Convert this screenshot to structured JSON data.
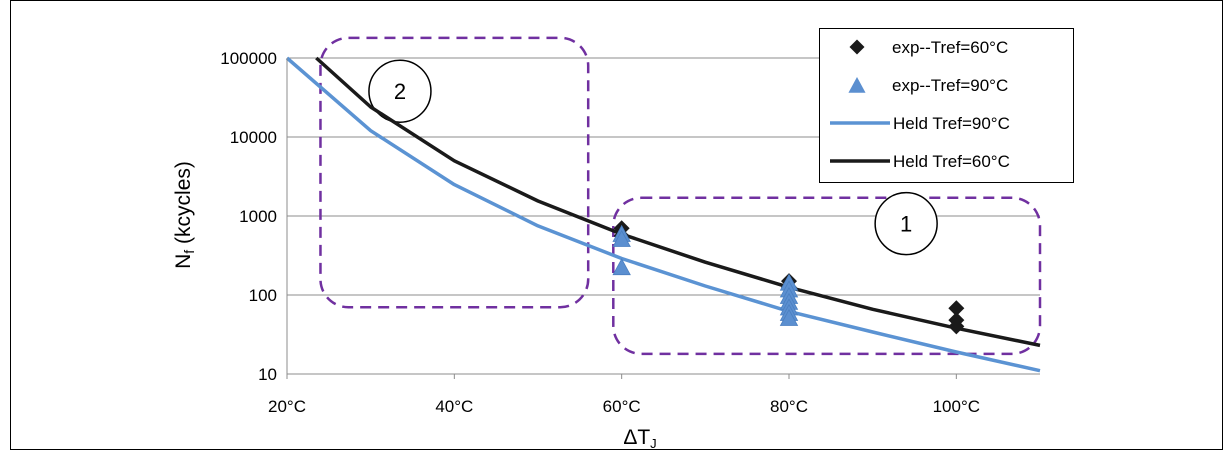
{
  "chart_data": {
    "type": "line",
    "xlabel": "ΔT",
    "xlabel_sub": "J",
    "ylabel": "N",
    "ylabel_sub": "f",
    "ylabel_tail": " (kcycles)",
    "xlim": [
      20,
      110
    ],
    "ylim": [
      10,
      100000
    ],
    "y_scale": "log",
    "grid": "horizontal",
    "x_ticks": [
      {
        "value": 20,
        "label": "20°C"
      },
      {
        "value": 40,
        "label": "40°C"
      },
      {
        "value": 60,
        "label": "60°C"
      },
      {
        "value": 80,
        "label": "80°C"
      },
      {
        "value": 100,
        "label": "100°C"
      }
    ],
    "y_ticks": [
      {
        "value": 10,
        "label": "10"
      },
      {
        "value": 100,
        "label": "100"
      },
      {
        "value": 1000,
        "label": "1000"
      },
      {
        "value": 10000,
        "label": "10000"
      },
      {
        "value": 100000,
        "label": "100000"
      }
    ],
    "legend_position": "top-right",
    "series": [
      {
        "name": "exp--Tref=60°C",
        "kind": "scatter",
        "marker": "diamond",
        "color": "#1a1a1a",
        "points": [
          [
            60,
            700
          ],
          [
            60,
            560
          ],
          [
            80,
            150
          ],
          [
            80,
            125
          ],
          [
            100,
            68
          ],
          [
            100,
            48
          ],
          [
            100,
            40
          ]
        ]
      },
      {
        "name": "exp--Tref=90°C",
        "kind": "scatter",
        "marker": "triangle",
        "color": "#5b8fd0",
        "points": [
          [
            60,
            580
          ],
          [
            60,
            500
          ],
          [
            60,
            220
          ],
          [
            80,
            140
          ],
          [
            80,
            115
          ],
          [
            80,
            95
          ],
          [
            80,
            80
          ],
          [
            80,
            68
          ],
          [
            80,
            58
          ],
          [
            80,
            50
          ]
        ]
      },
      {
        "name": "Held Tref=90°C",
        "kind": "line",
        "color": "#5b93d3",
        "points": [
          [
            20,
            100000
          ],
          [
            30,
            12000
          ],
          [
            40,
            2500
          ],
          [
            50,
            750
          ],
          [
            60,
            290
          ],
          [
            70,
            130
          ],
          [
            80,
            62
          ],
          [
            90,
            34
          ],
          [
            100,
            19
          ],
          [
            110,
            11
          ]
        ]
      },
      {
        "name": "Held Tref=60°C",
        "kind": "line",
        "color": "#1a1a1a",
        "points": [
          [
            23.5,
            100000
          ],
          [
            30,
            24000
          ],
          [
            40,
            5000
          ],
          [
            50,
            1550
          ],
          [
            60,
            590
          ],
          [
            70,
            260
          ],
          [
            80,
            125
          ],
          [
            90,
            66
          ],
          [
            100,
            38
          ],
          [
            110,
            23
          ]
        ]
      }
    ],
    "regions": [
      {
        "label": "1",
        "x_range": [
          59,
          110
        ],
        "y_range": [
          18,
          1700
        ]
      },
      {
        "label": "2",
        "x_range": [
          24,
          56
        ],
        "y_range": [
          70,
          180000
        ]
      }
    ]
  }
}
